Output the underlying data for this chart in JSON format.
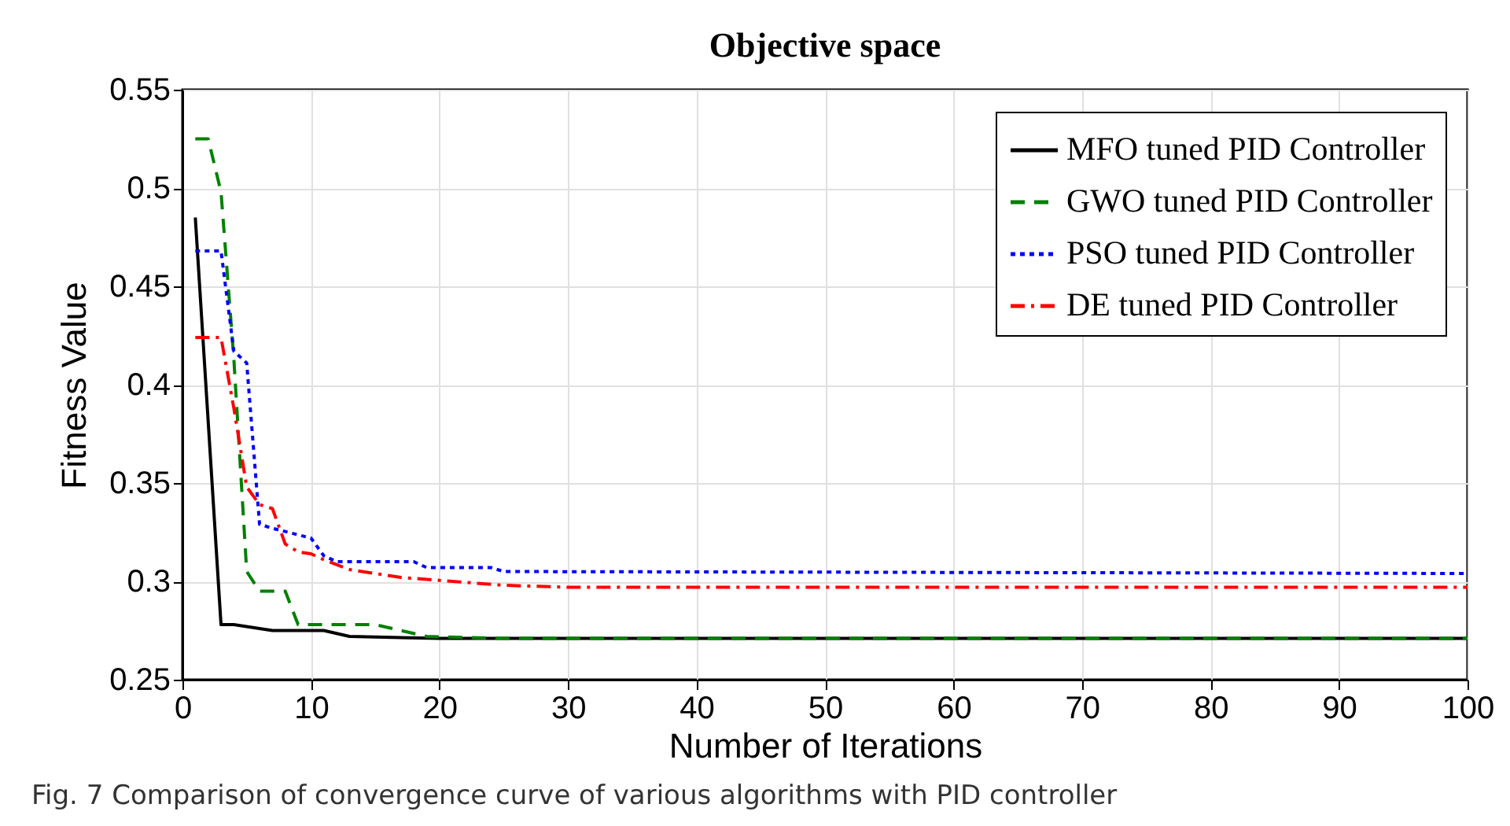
{
  "chart_data": {
    "type": "line",
    "title": "Objective space",
    "xlabel": "Number of Iterations",
    "ylabel": "Fitness Value",
    "annotations": [
      "Fig. 7  Comparison of convergence curve of various algorithms with PID controller"
    ],
    "xlim": [
      0,
      100
    ],
    "xticks": [
      0,
      10,
      20,
      30,
      40,
      50,
      60,
      70,
      80,
      90,
      100
    ],
    "ylim": [
      0.25,
      0.55
    ],
    "yticks": [
      0.25,
      0.3,
      0.35,
      0.4,
      0.45,
      0.5,
      0.55
    ],
    "grid": true,
    "legend": "top right",
    "marker": "none",
    "series": [
      {
        "name": "MFO tuned PID Controller",
        "color": "#000000",
        "line_style": "solid",
        "x": [
          1,
          3,
          4,
          7,
          11,
          13,
          20,
          100
        ],
        "values": [
          0.485,
          0.278,
          0.278,
          0.275,
          0.275,
          0.272,
          0.271,
          0.271
        ]
      },
      {
        "name": "GWO tuned PID Controller",
        "color": "#008000",
        "line_style": "dashed",
        "x": [
          1,
          2,
          3,
          4,
          5,
          6,
          8,
          9,
          15,
          19,
          25,
          100
        ],
        "values": [
          0.525,
          0.525,
          0.498,
          0.413,
          0.305,
          0.295,
          0.295,
          0.278,
          0.278,
          0.272,
          0.271,
          0.271
        ]
      },
      {
        "name": "PSO tuned PID Controller",
        "color": "#0000ff",
        "line_style": "dotted",
        "x": [
          1,
          3,
          4,
          5,
          6,
          7,
          10,
          11,
          12,
          18,
          19,
          24,
          25,
          100
        ],
        "values": [
          0.468,
          0.468,
          0.417,
          0.411,
          0.329,
          0.327,
          0.322,
          0.313,
          0.31,
          0.31,
          0.307,
          0.307,
          0.305,
          0.304
        ]
      },
      {
        "name": "DE tuned PID Controller",
        "color": "#ff0000",
        "line_style": "dashdot",
        "x": [
          1,
          3,
          4,
          5,
          6,
          7,
          8,
          9,
          10,
          11,
          13,
          17,
          21,
          25,
          30,
          100
        ],
        "values": [
          0.424,
          0.424,
          0.388,
          0.348,
          0.339,
          0.337,
          0.319,
          0.315,
          0.314,
          0.311,
          0.306,
          0.302,
          0.3,
          0.298,
          0.297,
          0.297
        ]
      }
    ]
  }
}
